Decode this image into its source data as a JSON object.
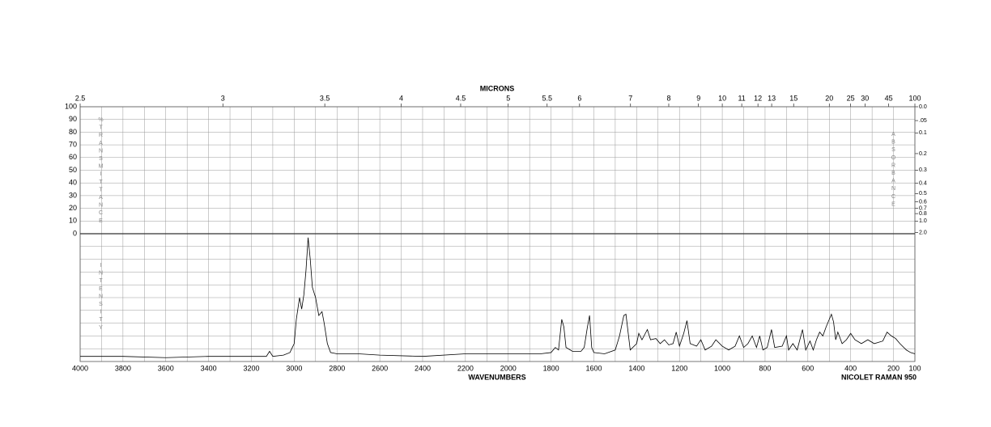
{
  "chart_data": {
    "type": "line",
    "top_axis_label": "MICRONS",
    "x_label": "WAVENUMBERS",
    "instrument": "NICOLET RAMAN 950",
    "left_axis_label": "%TRANSMITTANCE",
    "right_axis_label": "ABSORBANCE",
    "lower_axis_label": "INTENSITY",
    "xlim": [
      4000,
      100
    ],
    "xticks": [
      4000,
      3800,
      3600,
      3400,
      3200,
      3000,
      2800,
      2600,
      2400,
      2200,
      2000,
      1800,
      1600,
      1400,
      1200,
      1000,
      800,
      600,
      400,
      200,
      100
    ],
    "micron_ticks": [
      2.5,
      3,
      3.5,
      4,
      4.5,
      5,
      5.5,
      6,
      7,
      8,
      9,
      10,
      11,
      12,
      13,
      15,
      20,
      25,
      30,
      45,
      100
    ],
    "ylim": [
      0,
      100
    ],
    "yticks": [
      0,
      10,
      20,
      30,
      40,
      50,
      60,
      70,
      80,
      90,
      100
    ],
    "y2ticks": [
      {
        "value": 0,
        "label": "0.0"
      },
      {
        "value": 0.05,
        "label": ".05"
      },
      0.1,
      0.2,
      0.3,
      0.4,
      0.5,
      0.6,
      0.7,
      0.8,
      {
        "value": 1,
        "label": "1.0"
      },
      {
        "value": 2,
        "label": "2.0"
      }
    ],
    "intensity_lim": [
      0,
      100
    ],
    "grid": true,
    "color": "#000000",
    "x": [
      4000,
      3800,
      3600,
      3400,
      3200,
      3130,
      3115,
      3100,
      3050,
      3020,
      3000,
      2990,
      2975,
      2965,
      2955,
      2945,
      2935,
      2925,
      2915,
      2900,
      2885,
      2870,
      2860,
      2845,
      2830,
      2800,
      2700,
      2600,
      2400,
      2200,
      2000,
      1850,
      1800,
      1780,
      1765,
      1750,
      1740,
      1730,
      1700,
      1660,
      1645,
      1630,
      1620,
      1610,
      1600,
      1550,
      1500,
      1480,
      1460,
      1450,
      1440,
      1430,
      1400,
      1390,
      1375,
      1350,
      1335,
      1310,
      1290,
      1270,
      1250,
      1230,
      1215,
      1200,
      1180,
      1165,
      1150,
      1120,
      1100,
      1080,
      1050,
      1030,
      1000,
      970,
      940,
      920,
      900,
      880,
      860,
      840,
      825,
      810,
      790,
      770,
      755,
      720,
      700,
      690,
      670,
      650,
      625,
      610,
      590,
      575,
      560,
      545,
      530,
      515,
      500,
      490,
      480,
      470,
      460,
      440,
      420,
      400,
      380,
      350,
      320,
      290,
      250,
      230,
      210,
      190,
      170,
      140,
      120,
      100
    ],
    "values": [
      4,
      4,
      3,
      4,
      4,
      4,
      8,
      4,
      5,
      7,
      14,
      33,
      50,
      41,
      52,
      71,
      97,
      80,
      58,
      50,
      36,
      39,
      30,
      14,
      7,
      6,
      6,
      5,
      4,
      6,
      6,
      6,
      7,
      11,
      9,
      33,
      27,
      11,
      8,
      8,
      11,
      27,
      36,
      11,
      7,
      6,
      9,
      20,
      36,
      37,
      23,
      9,
      14,
      22,
      17,
      25,
      17,
      18,
      14,
      17,
      13,
      14,
      23,
      12,
      22,
      32,
      14,
      12,
      17,
      9,
      12,
      17,
      12,
      9,
      12,
      20,
      11,
      14,
      20,
      11,
      20,
      9,
      11,
      25,
      11,
      12,
      20,
      9,
      14,
      9,
      25,
      9,
      16,
      9,
      17,
      23,
      20,
      27,
      33,
      37,
      31,
      17,
      23,
      14,
      17,
      22,
      17,
      14,
      17,
      14,
      16,
      23,
      20,
      18,
      14,
      9,
      7,
      6
    ]
  }
}
